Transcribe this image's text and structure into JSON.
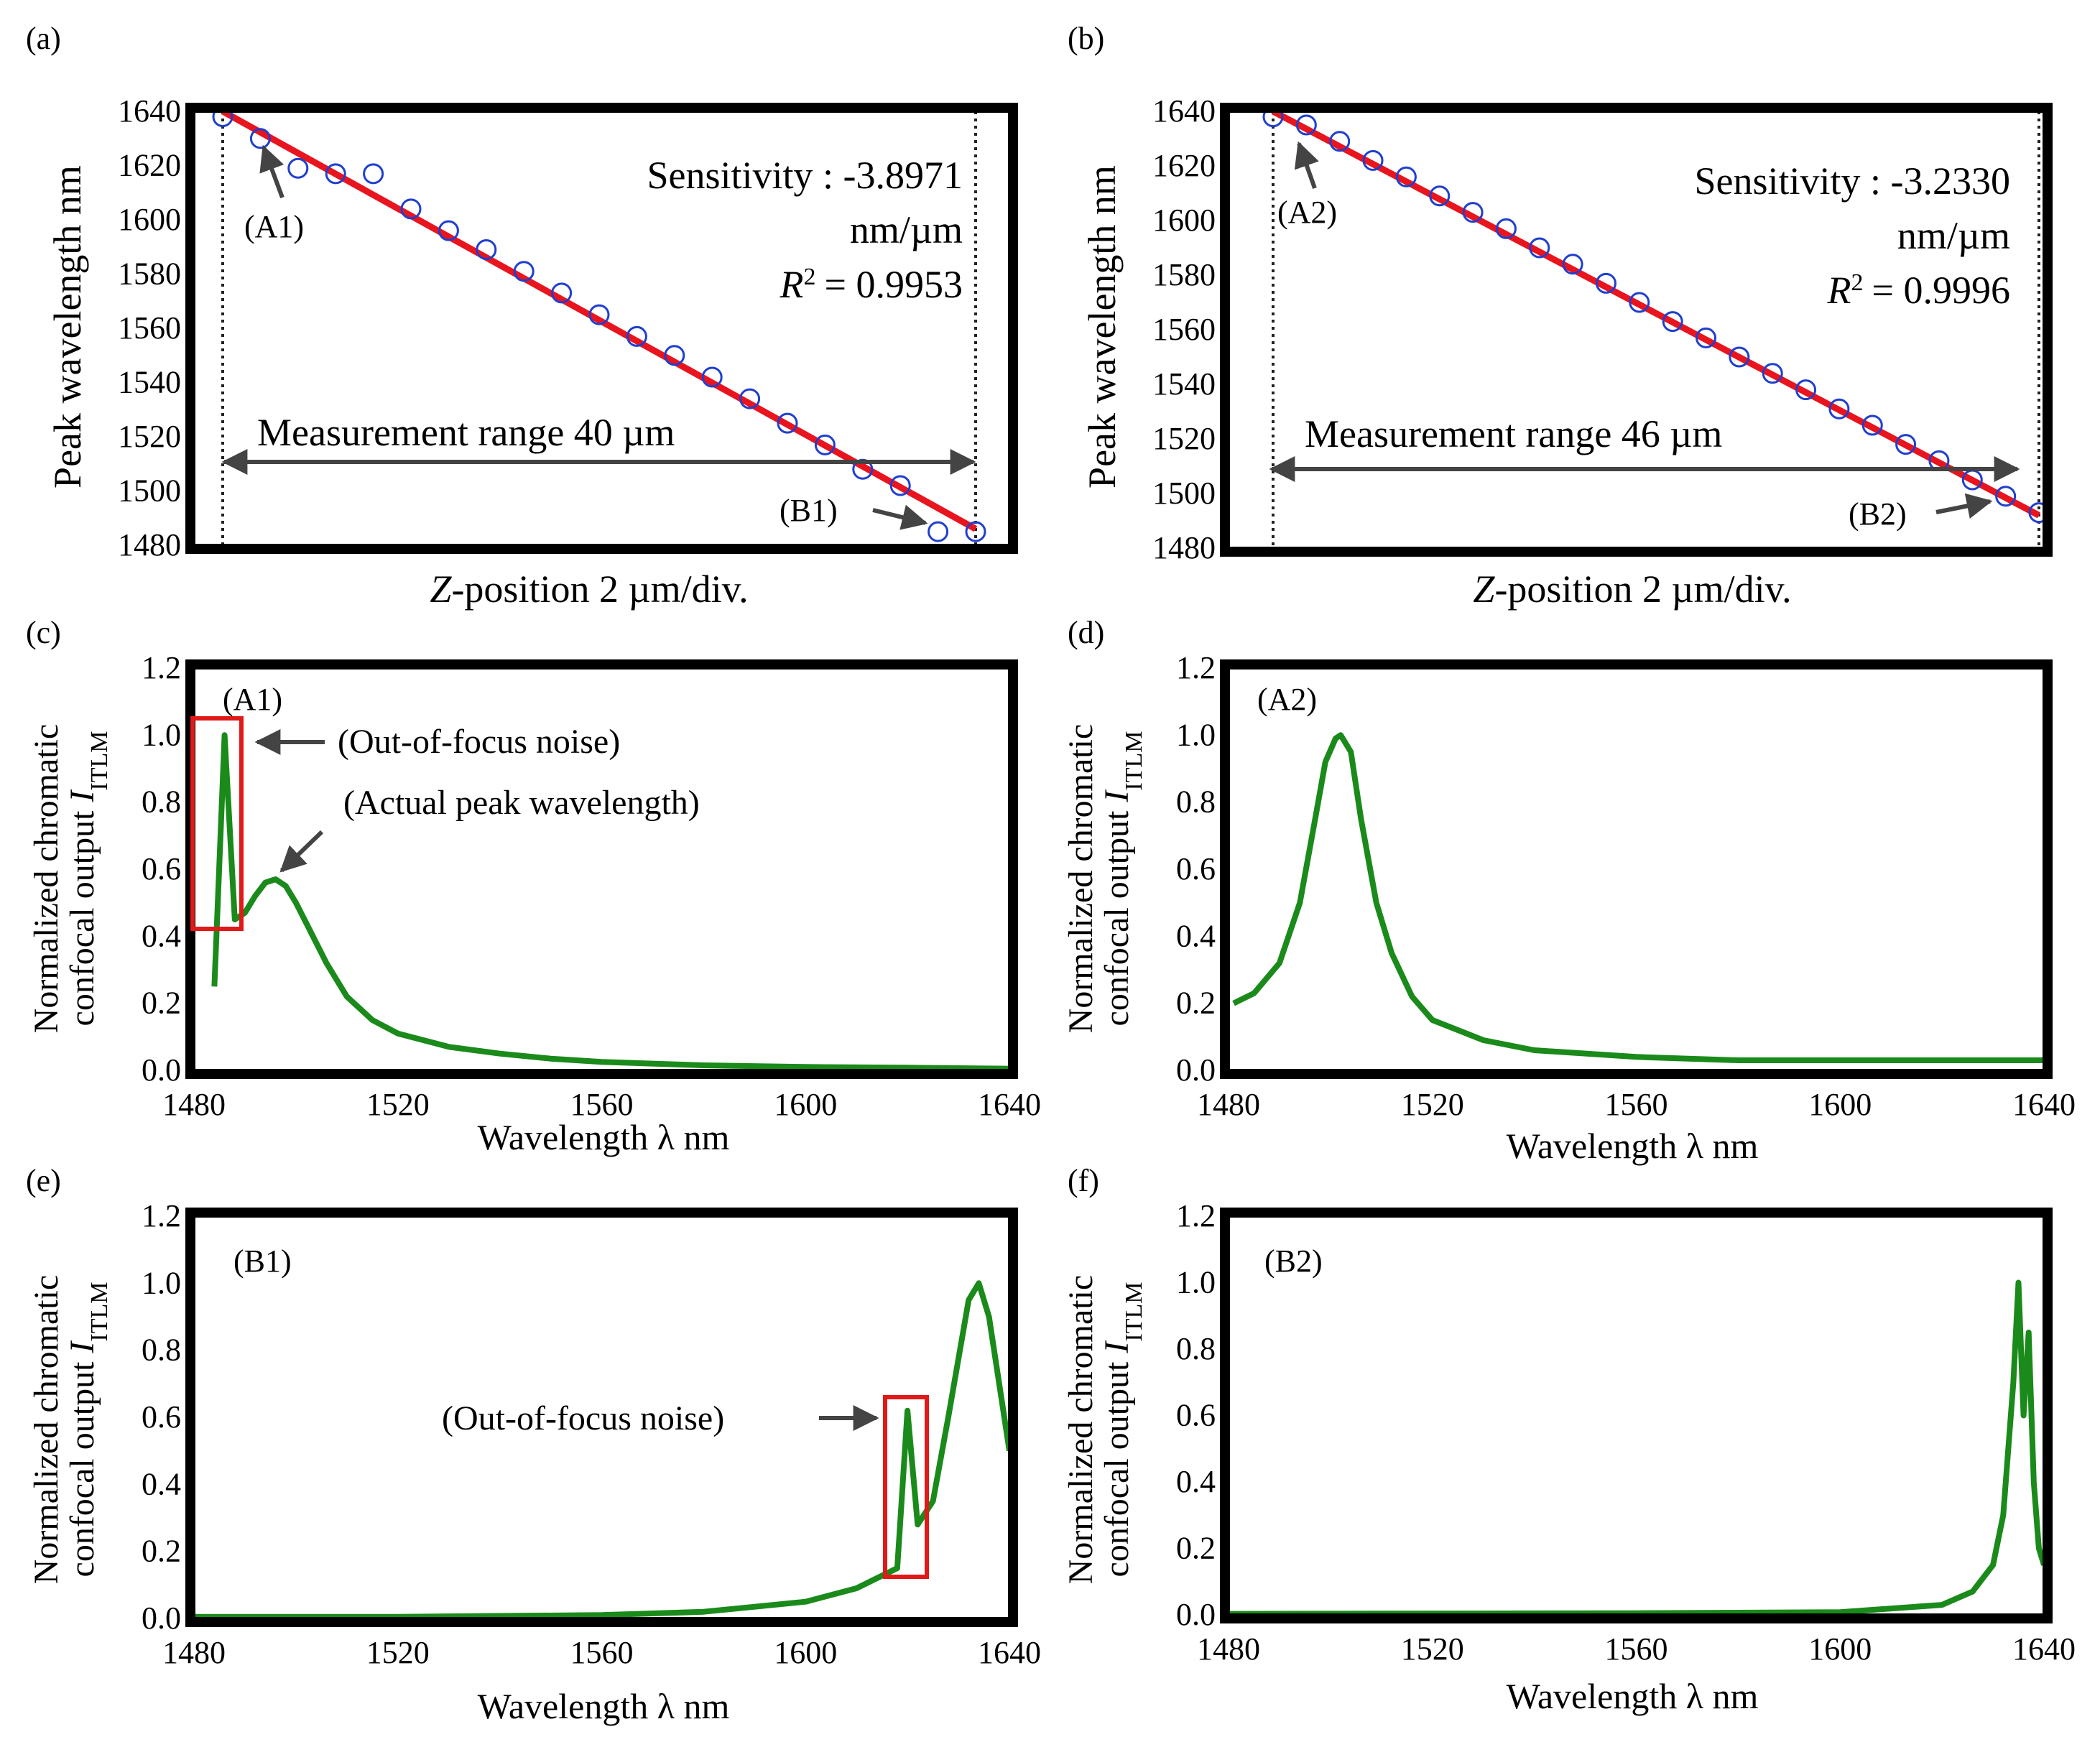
{
  "figure": {
    "panels": {
      "a": {
        "tag": "(a)",
        "sensitivity_line": "Sensitivity : -3.8971",
        "unit_line": "nm/µm",
        "r2_label": "R",
        "r2_value": "= 0.9953",
        "range_text": "Measurement range 40 µm",
        "callout_a": "(A1)",
        "callout_b": "(B1)"
      },
      "b": {
        "tag": "(b)",
        "sensitivity_line": "Sensitivity : -3.2330",
        "unit_line": "nm/µm",
        "r2_label": "R",
        "r2_value": "= 0.9996",
        "range_text": "Measurement range 46 µm",
        "callout_a": "(A2)",
        "callout_b": "(B2)"
      },
      "c": {
        "tag": "(c)",
        "inner": "(A1)",
        "noise_callout": "(Out-of-focus noise)",
        "peak_callout": "(Actual peak wavelength)"
      },
      "d": {
        "tag": "(d)",
        "inner": "(A2)"
      },
      "e": {
        "tag": "(e)",
        "inner": "(B1)",
        "noise_callout": "(Out-of-focus noise)"
      },
      "f": {
        "tag": "(f)",
        "inner": "(B2)"
      }
    },
    "scatter_axes": {
      "ylabel": "Peak wavelength  nm",
      "xlabel_italic": "Z",
      "xlabel_rest": "-position 2 µm/div.",
      "yticks": [
        "1640",
        "1620",
        "1600",
        "1580",
        "1560",
        "1540",
        "1520",
        "1500",
        "1480"
      ]
    },
    "spectrum_axes": {
      "ylabel_line1": "Normalized chromatic",
      "ylabel_line2": "confocal output ",
      "ylabel_symbol": "I",
      "ylabel_sub": "ITLM",
      "xlabel": "Wavelength λ  nm",
      "xticks": [
        "1480",
        "1520",
        "1560",
        "1600",
        "1640"
      ],
      "yticks": [
        "1.2",
        "1.0",
        "0.8",
        "0.6",
        "0.4",
        "0.2",
        "0.0"
      ]
    },
    "colors": {
      "marker": "#1f3fcf",
      "fit": "#e8141e",
      "spectrum": "#1a8a1a",
      "box": "#e01919",
      "arrow": "#444444"
    }
  },
  "chart_data": [
    {
      "id": "a",
      "type": "scatter",
      "title": "(a)",
      "xlabel": "Z-position 2 µm/div.",
      "ylabel": "Peak wavelength  nm",
      "ylim": [
        1480,
        1640
      ],
      "x": [
        0,
        2,
        4,
        6,
        8,
        10,
        12,
        14,
        16,
        18,
        20,
        22,
        24,
        26,
        28,
        30,
        32,
        34,
        36,
        38,
        40
      ],
      "y": [
        1638,
        1630,
        1619,
        1617,
        1617,
        1604,
        1596,
        1589,
        1581,
        1573,
        1565,
        1557,
        1550,
        1542,
        1534,
        1525,
        1517,
        1508,
        1502,
        1485,
        1485
      ],
      "fit": {
        "slope": -3.8971,
        "r2": 0.9953,
        "x_range": [
          0,
          40
        ],
        "y_range": [
          1640,
          1486
        ]
      },
      "measurement_range_um": 40
    },
    {
      "id": "b",
      "type": "scatter",
      "title": "(b)",
      "xlabel": "Z-position 2 µm/div.",
      "ylabel": "Peak wavelength  nm",
      "ylim": [
        1480,
        1640
      ],
      "x": [
        0,
        2,
        4,
        6,
        8,
        10,
        12,
        14,
        16,
        18,
        20,
        22,
        24,
        26,
        28,
        30,
        32,
        34,
        36,
        38,
        40,
        42,
        44,
        46
      ],
      "y": [
        1638,
        1635,
        1629,
        1622,
        1616,
        1609,
        1603,
        1597,
        1590,
        1584,
        1577,
        1570,
        1563,
        1557,
        1550,
        1544,
        1538,
        1531,
        1525,
        1518,
        1512,
        1505,
        1499,
        1493
      ],
      "fit": {
        "slope": -3.233,
        "r2": 0.9996,
        "x_range": [
          0,
          46
        ],
        "y_range": [
          1640,
          1492
        ]
      },
      "measurement_range_um": 46
    },
    {
      "id": "c",
      "type": "line",
      "title": "(c)",
      "xlabel": "Wavelength λ  nm",
      "ylabel": "Normalized chromatic confocal output I_ITLM",
      "xlim": [
        1480,
        1640
      ],
      "ylim": [
        0,
        1.2
      ],
      "x": [
        1484,
        1486,
        1488,
        1490,
        1492,
        1494,
        1496,
        1498,
        1500,
        1503,
        1506,
        1510,
        1515,
        1520,
        1530,
        1540,
        1550,
        1560,
        1580,
        1600,
        1620,
        1640
      ],
      "y": [
        0.25,
        1.0,
        0.45,
        0.47,
        0.52,
        0.56,
        0.57,
        0.55,
        0.5,
        0.41,
        0.32,
        0.22,
        0.15,
        0.11,
        0.07,
        0.05,
        0.035,
        0.025,
        0.015,
        0.01,
        0.008,
        0.005
      ]
    },
    {
      "id": "d",
      "type": "line",
      "title": "(d)",
      "xlabel": "Wavelength λ  nm",
      "ylabel": "Normalized chromatic confocal output I_ITLM",
      "xlim": [
        1480,
        1640
      ],
      "ylim": [
        0,
        1.2
      ],
      "x": [
        1481,
        1485,
        1490,
        1494,
        1497,
        1499,
        1501,
        1502,
        1504,
        1506,
        1509,
        1512,
        1516,
        1520,
        1530,
        1540,
        1560,
        1580,
        1600,
        1620,
        1640
      ],
      "y": [
        0.2,
        0.23,
        0.32,
        0.5,
        0.75,
        0.92,
        0.99,
        1.0,
        0.95,
        0.75,
        0.5,
        0.35,
        0.22,
        0.15,
        0.09,
        0.06,
        0.04,
        0.03,
        0.03,
        0.03,
        0.03
      ]
    },
    {
      "id": "e",
      "type": "line",
      "title": "(e)",
      "xlabel": "Wavelength λ  nm",
      "ylabel": "Normalized chromatic confocal output I_ITLM",
      "xlim": [
        1480,
        1640
      ],
      "ylim": [
        0,
        1.2
      ],
      "x": [
        1480,
        1520,
        1560,
        1580,
        1600,
        1610,
        1618,
        1620,
        1622,
        1625,
        1628,
        1632,
        1634,
        1636,
        1638,
        1640
      ],
      "y": [
        0.005,
        0.005,
        0.01,
        0.02,
        0.05,
        0.09,
        0.15,
        0.62,
        0.28,
        0.35,
        0.6,
        0.95,
        1.0,
        0.9,
        0.7,
        0.5
      ]
    },
    {
      "id": "f",
      "type": "line",
      "title": "(f)",
      "xlabel": "Wavelength λ  nm",
      "ylabel": "Normalized chromatic confocal output I_ITLM",
      "xlim": [
        1480,
        1640
      ],
      "ylim": [
        0,
        1.2
      ],
      "x": [
        1480,
        1560,
        1600,
        1620,
        1626,
        1630,
        1632,
        1634,
        1635,
        1636,
        1637,
        1638,
        1639,
        1640
      ],
      "y": [
        0.003,
        0.005,
        0.008,
        0.03,
        0.07,
        0.15,
        0.3,
        0.7,
        1.0,
        0.6,
        0.85,
        0.4,
        0.2,
        0.15
      ]
    }
  ]
}
